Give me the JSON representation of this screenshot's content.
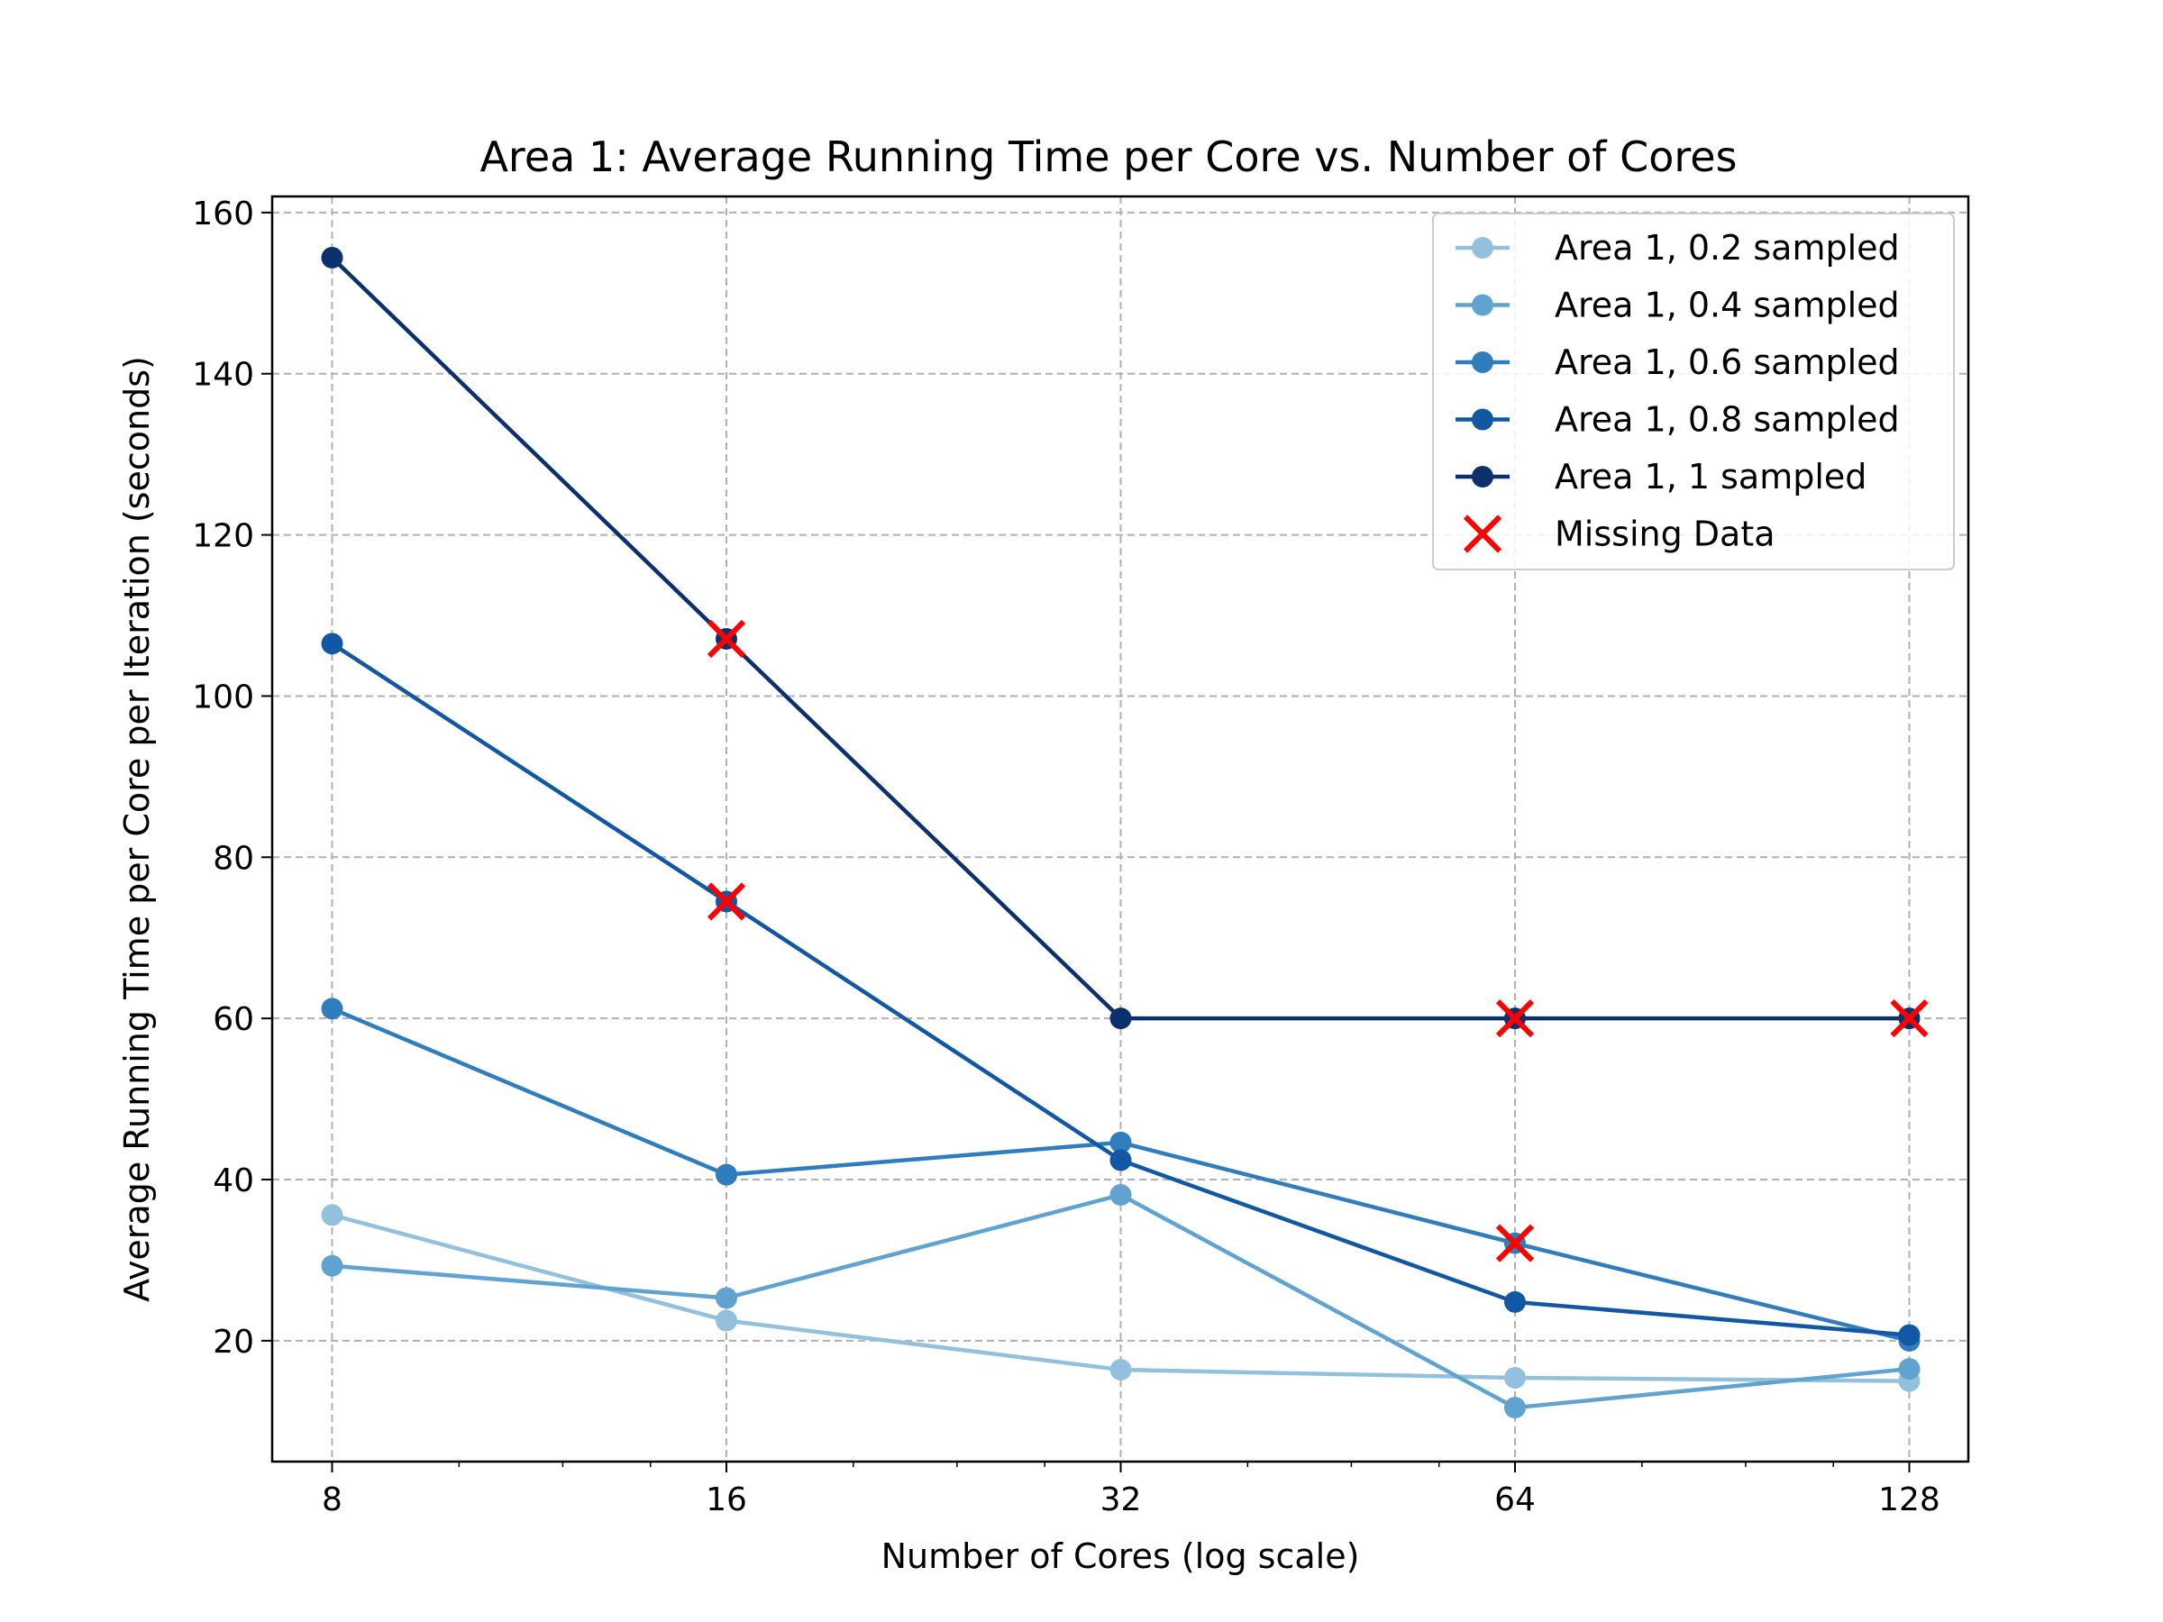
{
  "chart_data": {
    "type": "line",
    "title": "Area 1: Average Running Time per Core vs. Number of Cores",
    "xlabel": "Number of Cores (log scale)",
    "ylabel": "Average Running Time per Core per Iteration (seconds)",
    "xscale": "log2",
    "x": [
      8,
      16,
      32,
      64,
      128
    ],
    "x_tick_labels": [
      "8",
      "16",
      "32",
      "64",
      "128"
    ],
    "xlim": [
      7.2,
      142
    ],
    "ylim": [
      5,
      162
    ],
    "y_ticks": [
      20,
      40,
      60,
      80,
      100,
      120,
      140,
      160
    ],
    "grid": true,
    "legend_position": "top-right",
    "series": [
      {
        "name": "Area 1, 0.2 sampled",
        "color": "#92c0dd",
        "values": [
          35.6,
          22.5,
          16.4,
          15.4,
          15.0
        ]
      },
      {
        "name": "Area 1, 0.4 sampled",
        "color": "#60a3d0",
        "values": [
          29.3,
          25.3,
          38.1,
          11.7,
          16.5
        ]
      },
      {
        "name": "Area 1, 0.6 sampled",
        "color": "#2f7dbd",
        "values": [
          61.2,
          40.6,
          44.6,
          32.1,
          20.0
        ]
      },
      {
        "name": "Area 1, 0.8 sampled",
        "color": "#1257a3",
        "values": [
          106.5,
          74.5,
          42.4,
          24.8,
          20.7
        ]
      },
      {
        "name": "Area 1, 1 sampled",
        "color": "#0c306b",
        "values": [
          154.4,
          107.1,
          60.0,
          60.0,
          60.0
        ]
      }
    ],
    "missing_data": {
      "name": "Missing Data",
      "color": "#ff0000",
      "points": [
        {
          "x": 16,
          "y": 107.1
        },
        {
          "x": 16,
          "y": 74.5
        },
        {
          "x": 64,
          "y": 60.0
        },
        {
          "x": 128,
          "y": 60.0
        },
        {
          "x": 64,
          "y": 32.1
        }
      ]
    }
  }
}
